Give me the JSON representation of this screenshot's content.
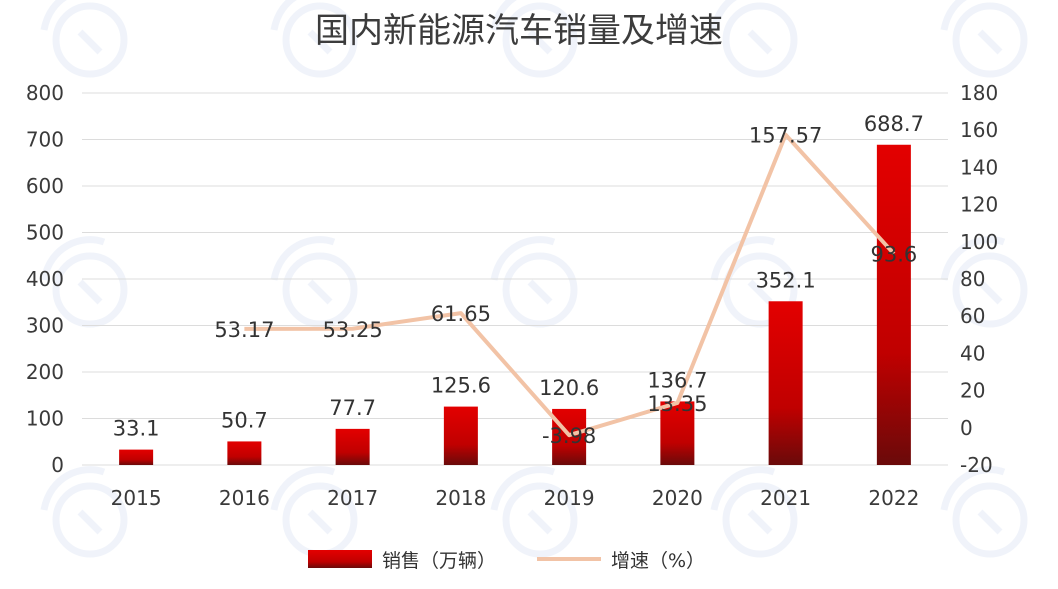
{
  "chart_data": {
    "type": "bar",
    "title": "国内新能源汽车销量及增速",
    "categories": [
      "2015",
      "2016",
      "2017",
      "2018",
      "2019",
      "2020",
      "2021",
      "2022"
    ],
    "series": [
      {
        "name": "销售（万辆）",
        "type": "bar",
        "axis": "left",
        "values": [
          33.1,
          50.7,
          77.7,
          125.6,
          120.6,
          136.7,
          352.1,
          688.7
        ],
        "labels": [
          "33.1",
          "50.7",
          "77.7",
          "125.6",
          "120.6",
          "136.7",
          "352.1",
          "688.7"
        ],
        "color": "#d40000"
      },
      {
        "name": "增速（%）",
        "type": "line",
        "axis": "right",
        "values": [
          null,
          53.17,
          53.25,
          61.65,
          -3.98,
          13.35,
          157.57,
          93.6
        ],
        "labels": [
          "",
          "53.17",
          "53.25",
          "61.65",
          "-3.98",
          "13.35",
          "157.57",
          "93.6"
        ],
        "color": "#f2c3a6"
      }
    ],
    "ylim_left": [
      0,
      800
    ],
    "yticks_left": [
      0,
      100,
      200,
      300,
      400,
      500,
      600,
      700,
      800
    ],
    "ylim_right": [
      -20,
      180
    ],
    "yticks_right": [
      -20,
      0,
      20,
      40,
      60,
      80,
      100,
      120,
      140,
      160,
      180
    ],
    "grid": true,
    "legend": "bottom"
  }
}
